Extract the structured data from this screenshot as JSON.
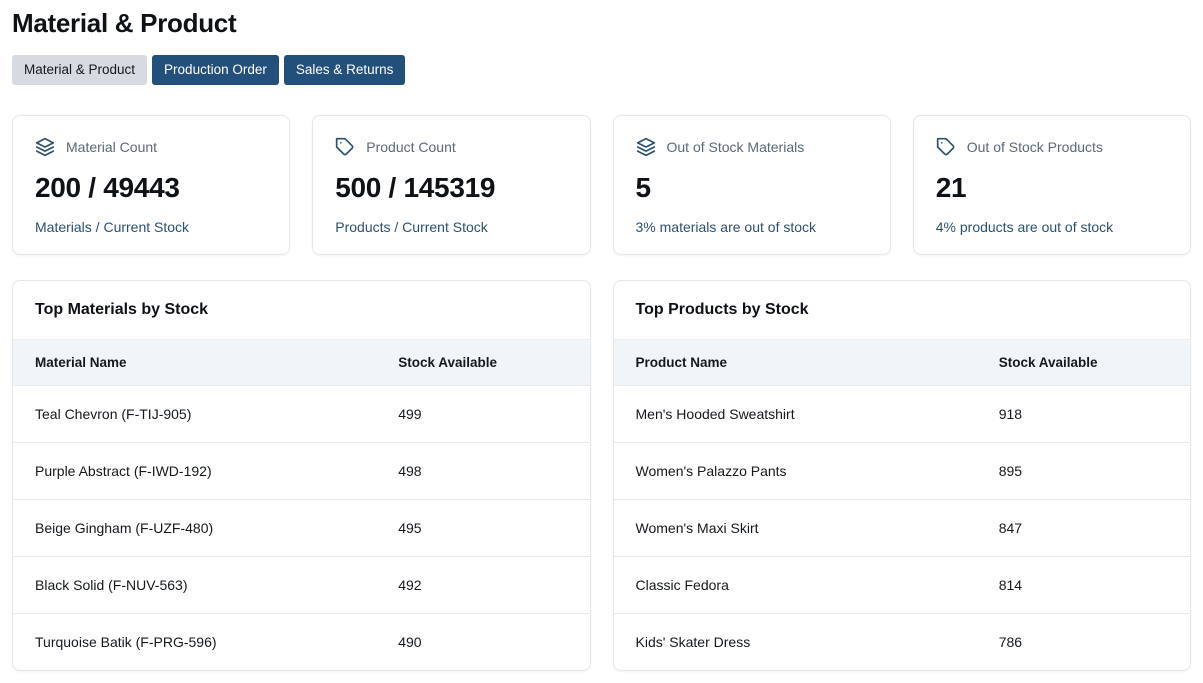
{
  "page": {
    "title": "Material & Product"
  },
  "tabs": [
    {
      "label": "Material & Product",
      "active": true
    },
    {
      "label": "Production Order",
      "active": false
    },
    {
      "label": "Sales & Returns",
      "active": false
    }
  ],
  "stat_cards": [
    {
      "icon": "layers-icon",
      "label": "Material Count",
      "value": "200 / 49443",
      "subtitle": "Materials / Current Stock"
    },
    {
      "icon": "tag-icon",
      "label": "Product Count",
      "value": "500 / 145319",
      "subtitle": "Products / Current Stock"
    },
    {
      "icon": "layers-icon",
      "label": "Out of Stock Materials",
      "value": "5",
      "subtitle": "3% materials are out of stock"
    },
    {
      "icon": "tag-icon",
      "label": "Out of Stock Products",
      "value": "21",
      "subtitle": "4% products are out of stock"
    }
  ],
  "tables": [
    {
      "title": "Top Materials by Stock",
      "columns": [
        "Material Name",
        "Stock Available"
      ],
      "rows": [
        [
          "Teal Chevron (F-TIJ-905)",
          "499"
        ],
        [
          "Purple Abstract (F-IWD-192)",
          "498"
        ],
        [
          "Beige Gingham (F-UZF-480)",
          "495"
        ],
        [
          "Black Solid (F-NUV-563)",
          "492"
        ],
        [
          "Turquoise Batik (F-PRG-596)",
          "490"
        ]
      ]
    },
    {
      "title": "Top Products by Stock",
      "columns": [
        "Product Name",
        "Stock Available"
      ],
      "rows": [
        [
          "Men's Hooded Sweatshirt",
          "918"
        ],
        [
          "Women's Palazzo Pants",
          "895"
        ],
        [
          "Women's Maxi Skirt",
          "847"
        ],
        [
          "Classic Fedora",
          "814"
        ],
        [
          "Kids' Skater Dress",
          "786"
        ]
      ]
    }
  ],
  "colors": {
    "tab_active_bg": "#d7dbe1",
    "tab_inactive_bg": "#234f7b",
    "accent_navy": "#2c5170"
  }
}
